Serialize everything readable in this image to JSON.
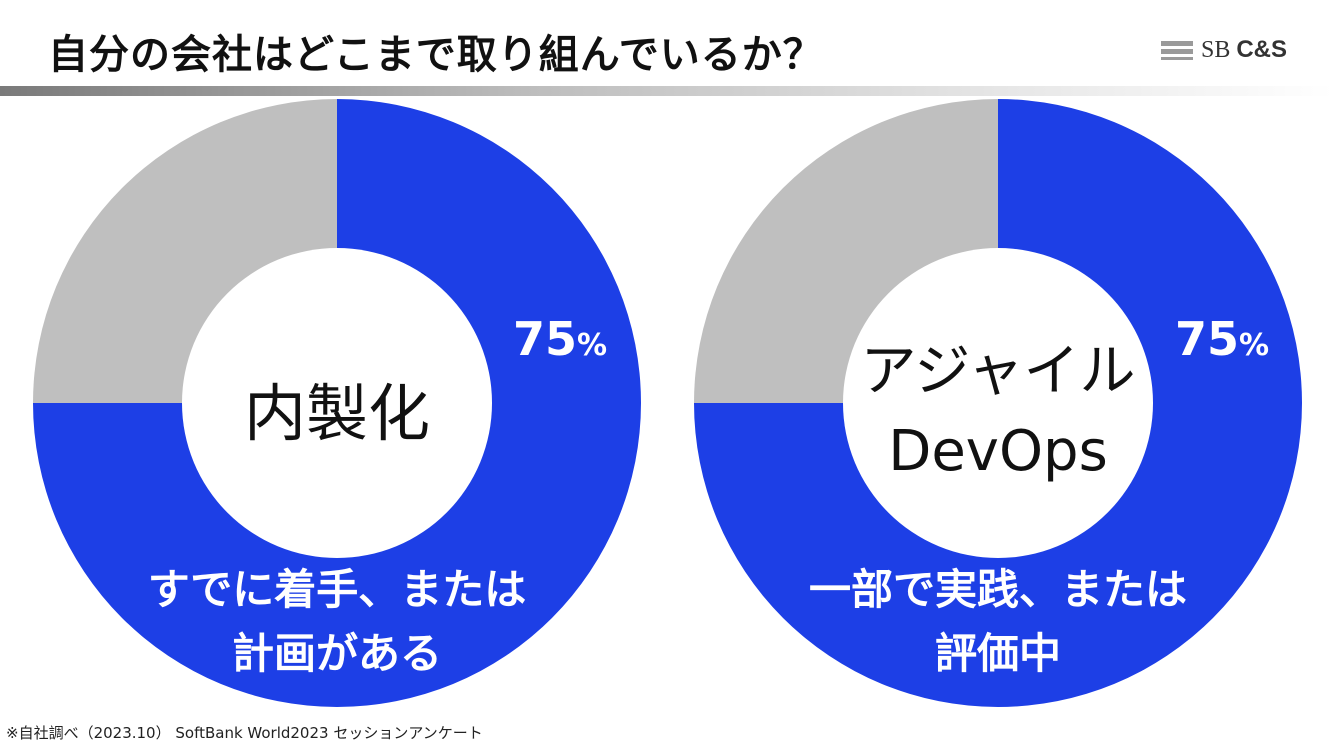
{
  "header": {
    "title": "自分の会社はどこまで取り組んでいるか？",
    "logo_sb": "SB",
    "logo_cs": "C&S"
  },
  "footnote": "※自社調べ（2023.10） SoftBank World2023 セッションアンケート",
  "colors": {
    "accent": "#1d3fe6",
    "rest": "#bfbfbf",
    "center": "#ffffff"
  },
  "chart_data": [
    {
      "type": "pie",
      "center_label": [
        "内製化"
      ],
      "slices": [
        {
          "label": "すでに着手、または計画がある",
          "value": 75,
          "color": "#1d3fe6"
        },
        {
          "label": "",
          "value": 25,
          "color": "#bfbfbf"
        }
      ],
      "value_label": "75",
      "value_unit": "%",
      "slice_text": [
        "すでに着手、または",
        "計画がある"
      ]
    },
    {
      "type": "pie",
      "center_label": [
        "アジャイル",
        "DevOps"
      ],
      "slices": [
        {
          "label": "一部で実践、または評価中",
          "value": 75,
          "color": "#1d3fe6"
        },
        {
          "label": "",
          "value": 25,
          "color": "#bfbfbf"
        }
      ],
      "value_label": "75",
      "value_unit": "%",
      "slice_text": [
        "一部で実践、または",
        "評価中"
      ]
    }
  ]
}
